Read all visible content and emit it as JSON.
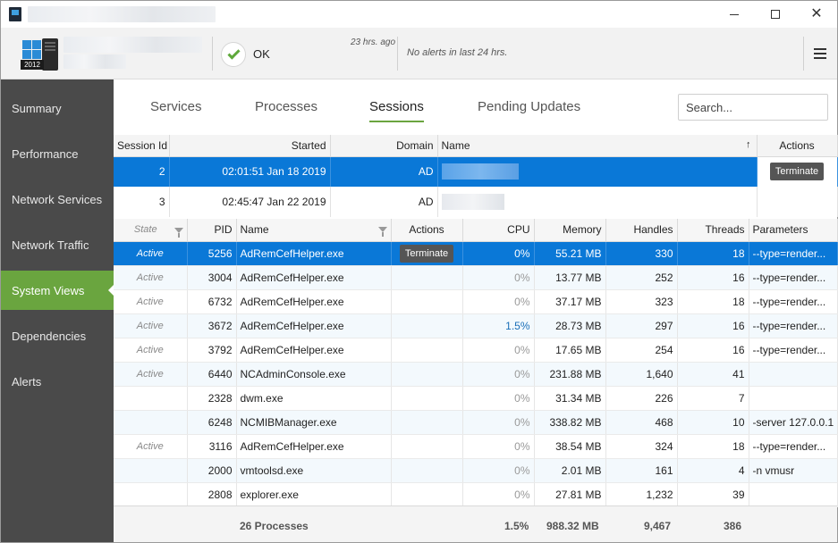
{
  "header": {
    "server_badge": "2012",
    "status": "OK",
    "last_check": "23 hrs. ago",
    "alerts": "No alerts in last 24 hrs."
  },
  "sidebar": {
    "items": [
      {
        "label": "Summary"
      },
      {
        "label": "Performance"
      },
      {
        "label": "Network Services"
      },
      {
        "label": "Network Traffic"
      },
      {
        "label": "System Views"
      },
      {
        "label": "Dependencies"
      },
      {
        "label": "Alerts"
      }
    ],
    "active_index": 4
  },
  "tabs": [
    {
      "label": "Services"
    },
    {
      "label": "Processes"
    },
    {
      "label": "Sessions"
    },
    {
      "label": "Pending Updates"
    }
  ],
  "active_tab": 2,
  "search": {
    "placeholder": "Search..."
  },
  "sessions": {
    "columns": [
      "Session Id",
      "Started",
      "Domain",
      "Name",
      "Actions"
    ],
    "sort_indicator": "↑",
    "rows": [
      {
        "id": "2",
        "started": "02:01:51 Jan 18 2019",
        "domain": "AD",
        "action": "Terminate",
        "selected": true
      },
      {
        "id": "3",
        "started": "02:45:47 Jan 22 2019",
        "domain": "AD",
        "action": "",
        "selected": false
      }
    ]
  },
  "processes": {
    "columns": [
      "State",
      "PID",
      "Name",
      "Actions",
      "CPU",
      "Memory",
      "Handles",
      "Threads",
      "Parameters"
    ],
    "rows": [
      {
        "state": "Active",
        "pid": "5256",
        "name": "AdRemCefHelper.exe",
        "action": "Terminate",
        "cpu": "0%",
        "memory": "55.21 MB",
        "handles": "330",
        "threads": "18",
        "params": "--type=render...",
        "selected": true
      },
      {
        "state": "Active",
        "pid": "3004",
        "name": "AdRemCefHelper.exe",
        "action": "",
        "cpu": "0%",
        "memory": "13.77 MB",
        "handles": "252",
        "threads": "16",
        "params": "--type=render..."
      },
      {
        "state": "Active",
        "pid": "6732",
        "name": "AdRemCefHelper.exe",
        "action": "",
        "cpu": "0%",
        "memory": "37.17 MB",
        "handles": "323",
        "threads": "18",
        "params": "--type=render..."
      },
      {
        "state": "Active",
        "pid": "3672",
        "name": "AdRemCefHelper.exe",
        "action": "",
        "cpu": "1.5%",
        "memory": "28.73 MB",
        "handles": "297",
        "threads": "16",
        "params": "--type=render..."
      },
      {
        "state": "Active",
        "pid": "3792",
        "name": "AdRemCefHelper.exe",
        "action": "",
        "cpu": "0%",
        "memory": "17.65 MB",
        "handles": "254",
        "threads": "16",
        "params": "--type=render..."
      },
      {
        "state": "Active",
        "pid": "6440",
        "name": "NCAdminConsole.exe",
        "action": "",
        "cpu": "0%",
        "memory": "231.88 MB",
        "handles": "1,640",
        "threads": "41",
        "params": ""
      },
      {
        "state": "",
        "pid": "2328",
        "name": "dwm.exe",
        "action": "",
        "cpu": "0%",
        "memory": "31.34 MB",
        "handles": "226",
        "threads": "7",
        "params": ""
      },
      {
        "state": "",
        "pid": "6248",
        "name": "NCMIBManager.exe",
        "action": "",
        "cpu": "0%",
        "memory": "338.82 MB",
        "handles": "468",
        "threads": "10",
        "params": "-server 127.0.0.1"
      },
      {
        "state": "Active",
        "pid": "3116",
        "name": "AdRemCefHelper.exe",
        "action": "",
        "cpu": "0%",
        "memory": "38.54 MB",
        "handles": "324",
        "threads": "18",
        "params": "--type=render..."
      },
      {
        "state": "",
        "pid": "2000",
        "name": "vmtoolsd.exe",
        "action": "",
        "cpu": "0%",
        "memory": "2.01 MB",
        "handles": "161",
        "threads": "4",
        "params": "-n vmusr"
      },
      {
        "state": "",
        "pid": "2808",
        "name": "explorer.exe",
        "action": "",
        "cpu": "0%",
        "memory": "27.81 MB",
        "handles": "1,232",
        "threads": "39",
        "params": ""
      }
    ],
    "footer": {
      "count": "26 Processes",
      "cpu": "1.5%",
      "memory": "988.32 MB",
      "handles": "9,467",
      "threads": "386"
    }
  }
}
